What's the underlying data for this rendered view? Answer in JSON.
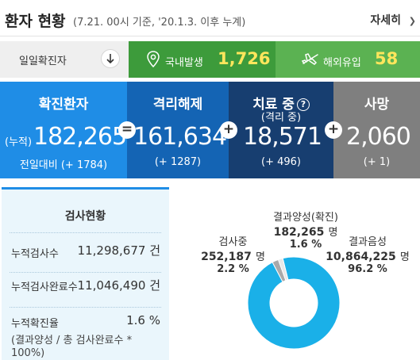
{
  "header": {
    "title": "환자 현황",
    "subtitle": "(7.21. 00시 기준, '20.1.3. 이후 누계)",
    "more_label": "자세히"
  },
  "daily": {
    "label": "일일확진자",
    "domestic_label": "국내발생",
    "domestic_value": "1,726",
    "overseas_label": "해외유입",
    "overseas_value": "58"
  },
  "stats": {
    "confirmed": {
      "label": "확진환자",
      "prefix": "(누적)",
      "value": "182,265",
      "delta": "전일대비 (+ 1784)"
    },
    "released": {
      "label": "격리해제",
      "value": "161,634",
      "delta": "(+ 1287)"
    },
    "treatment": {
      "label": "치료 중",
      "sublabel": "(격리 중)",
      "value": "18,571",
      "delta": "(+ 496)"
    },
    "deaths": {
      "label": "사망",
      "value": "2,060",
      "delta": "(+ 1)"
    }
  },
  "tests": {
    "title": "검사현황",
    "cum_tests_label": "누적검사수",
    "cum_tests_value": "11,298,677 건",
    "cum_done_label": "누적검사완료수",
    "cum_done_value": "11,046,490 건",
    "confirm_rate_label": "누적확진율",
    "confirm_rate_value": "1.6 %",
    "note": "(결과양성 / 총 검사완료수 * 100%)"
  },
  "chart_data": {
    "type": "pie",
    "donut": true,
    "slices": [
      {
        "name": "결과음성",
        "value": 10864225,
        "unit": "명",
        "percent": "96.2 %",
        "color": "#1ab0e8"
      },
      {
        "name": "검사중",
        "value": 252187,
        "unit": "명",
        "percent": "2.2 %",
        "color": "#a9a9a9"
      },
      {
        "name": "결과양성(확진)",
        "value": 182265,
        "unit": "명",
        "percent": "1.6 %",
        "color": "#e8e8e8"
      }
    ],
    "labels": {
      "testing_value": "252,187",
      "positive_value": "182,265",
      "negative_value": "10,864,225"
    }
  },
  "colors": {
    "confirmed": "#1f8de6",
    "released": "#1464b4",
    "treatment": "#173e70",
    "deaths": "#7f7f7f",
    "domestic": "#3d9b3b",
    "overseas": "#5bb252",
    "highlight_value": "#ffe65c"
  },
  "icons": {
    "daily_toggle": "arrow-down-icon",
    "domestic": "map-pin-icon",
    "overseas": "airplane-icon",
    "more": "chevron-right-icon",
    "treatment_help": "question-circle-icon"
  }
}
